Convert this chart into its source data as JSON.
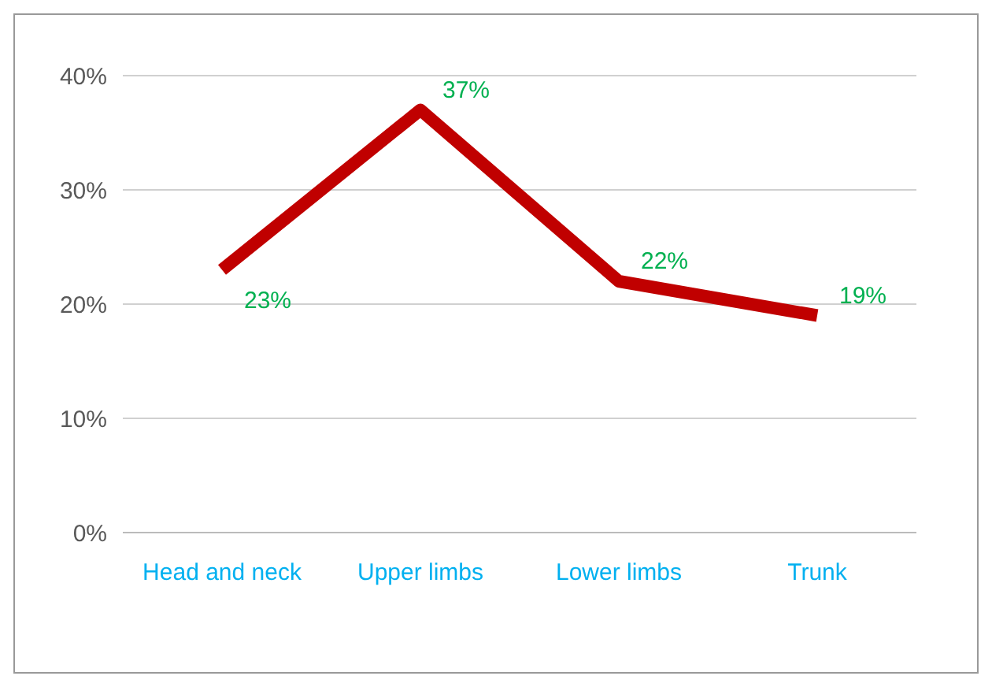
{
  "chart_data": {
    "type": "line",
    "categories": [
      "Head and neck",
      "Upper limbs",
      "Lower limbs",
      "Trunk"
    ],
    "series": [
      {
        "color": "#c00000",
        "values": [
          23,
          37,
          22,
          19
        ]
      }
    ],
    "ylim": [
      0,
      40
    ],
    "yticks": [
      {
        "value": 0,
        "label": "0%"
      },
      {
        "value": 10,
        "label": "10%"
      },
      {
        "value": 20,
        "label": "20%"
      },
      {
        "value": 30,
        "label": "30%"
      },
      {
        "value": 40,
        "label": "40%"
      }
    ],
    "value_labels": [
      "23%",
      "37%",
      "22%",
      "19%"
    ],
    "grid": "y",
    "marker": "none",
    "line_style": "solid"
  }
}
